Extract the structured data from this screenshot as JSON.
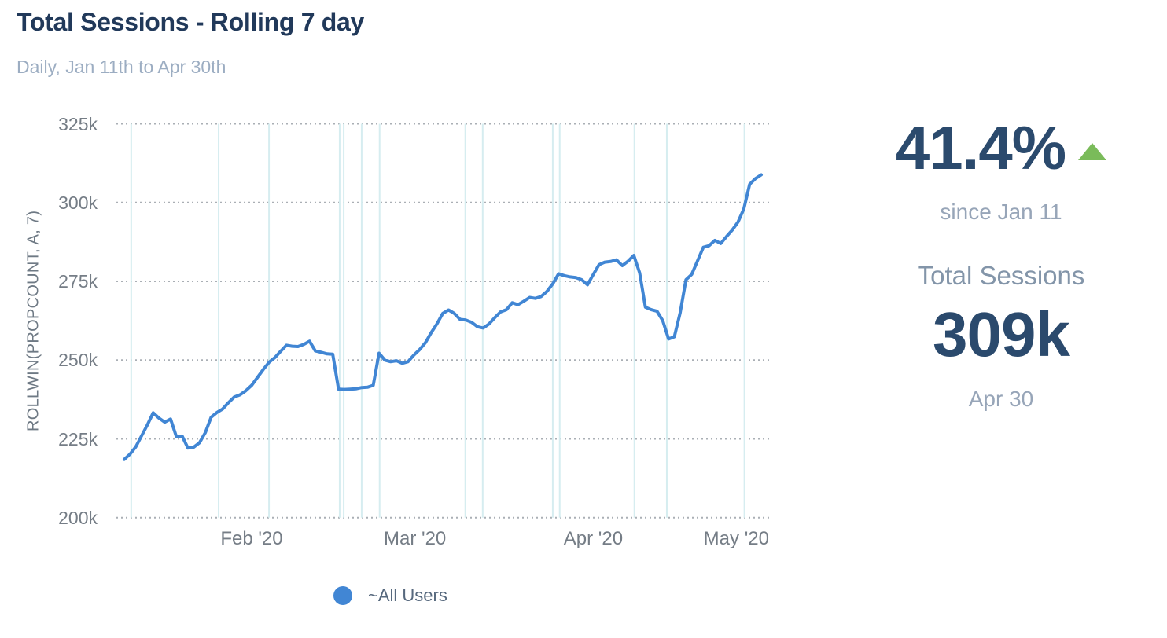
{
  "header": {
    "title": "Total Sessions - Rolling 7 day",
    "subtitle": "Daily, Jan 11th to Apr 30th"
  },
  "chart_data": {
    "type": "line",
    "title": "Total Sessions - Rolling 7 day",
    "granularity": "daily",
    "x_start": "Jan 11 2020",
    "x_end": "Apr 30 2020",
    "ylabel": "ROLLWIN(PROPCOUNT, A, 7)",
    "ylim_k": [
      200,
      325
    ],
    "grid": {
      "horizontal": "dotted",
      "vertical": "annotation-lines"
    },
    "legend_position": "bottom",
    "y_ticks": [
      {
        "label": "325k",
        "value": 325
      },
      {
        "label": "300k",
        "value": 300
      },
      {
        "label": "275k",
        "value": 275
      },
      {
        "label": "250k",
        "value": 250
      },
      {
        "label": "225k",
        "value": 225
      },
      {
        "label": "200k",
        "value": 200
      }
    ],
    "x_ticks": [
      {
        "label": "Feb '20",
        "day": 22
      },
      {
        "label": "Mar '20",
        "day": 50.2
      },
      {
        "label": "Apr '20",
        "day": 81
      },
      {
        "label": "May '20",
        "day": 105.7
      }
    ],
    "annotation_days": [
      1.2,
      16.3,
      25.0,
      37.2,
      37.9,
      41.0,
      44.1,
      58.9,
      61.9,
      74.0,
      75.2,
      88.1,
      93.7,
      107.1
    ],
    "series": [
      {
        "name": "~All Users",
        "color": "#4186d4",
        "unit": "sessions (thousands)",
        "values_k": [
          218.5,
          220.2,
          222.5,
          226.0,
          229.5,
          233.3,
          231.6,
          230.3,
          231.3,
          225.7,
          225.9,
          222.1,
          222.4,
          223.8,
          227.0,
          231.9,
          233.4,
          234.5,
          236.5,
          238.3,
          239.0,
          240.3,
          242.0,
          244.5,
          247.0,
          249.3,
          250.8,
          252.8,
          254.7,
          254.4,
          254.3,
          255.0,
          256.0,
          252.9,
          252.5,
          252.0,
          251.9,
          240.8,
          240.7,
          240.8,
          240.9,
          241.3,
          241.4,
          242.0,
          252.2,
          250.0,
          249.5,
          249.8,
          249.0,
          249.5,
          251.6,
          253.3,
          255.5,
          258.7,
          261.5,
          264.8,
          265.9,
          264.8,
          262.9,
          262.7,
          262.0,
          260.6,
          260.2,
          261.5,
          263.5,
          265.3,
          266.0,
          268.2,
          267.6,
          268.7,
          269.9,
          269.6,
          270.2,
          271.8,
          274.2,
          277.4,
          276.8,
          276.4,
          276.2,
          275.5,
          273.9,
          277.2,
          280.3,
          281.1,
          281.3,
          281.8,
          280.0,
          281.4,
          283.2,
          277.7,
          266.8,
          266.0,
          265.5,
          262.5,
          256.7,
          257.4,
          265.0,
          275.5,
          277.2,
          281.5,
          285.8,
          286.3,
          288.0,
          287.0,
          289.2,
          291.3,
          293.8,
          298.0,
          305.8,
          307.6,
          308.8
        ]
      }
    ]
  },
  "legend": {
    "items": [
      {
        "label": "~All Users",
        "color": "#4186d4"
      }
    ]
  },
  "stats": {
    "change_pct": "41.4%",
    "change_direction": "up",
    "change_caption": "since Jan 11",
    "metric_label": "Total Sessions",
    "latest_value": "309k",
    "latest_caption": "Apr 30"
  },
  "colors": {
    "accent_blue": "#4186d4",
    "navy_text": "#2b4a6d",
    "title_navy": "#21395a",
    "muted_text": "#97a5b8",
    "tick_text": "#757d86",
    "green_up": "#7abb5a",
    "annotation_line": "#d6edf0",
    "dotted_grid": "#aaafb5"
  }
}
